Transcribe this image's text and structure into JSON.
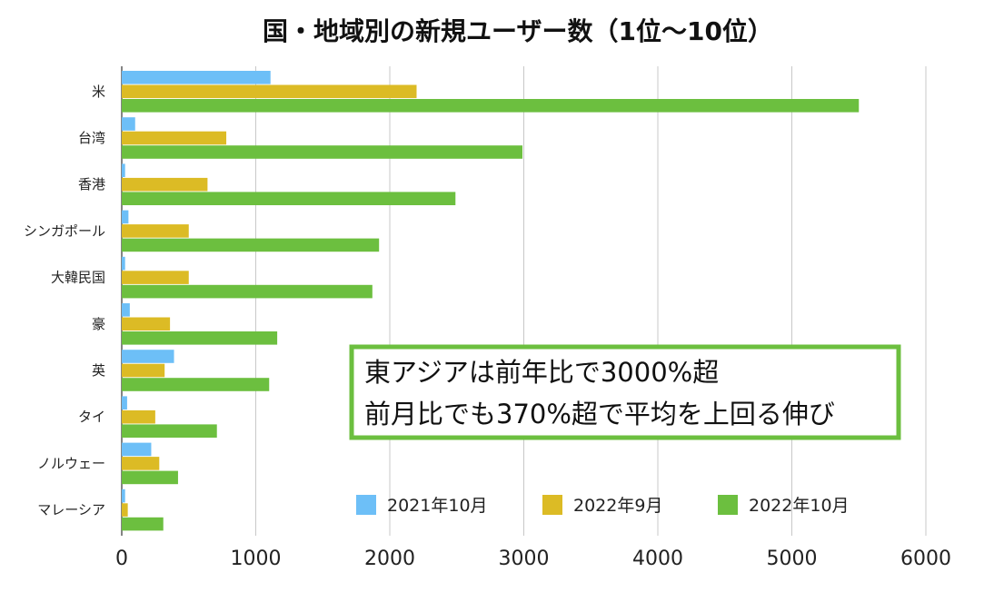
{
  "chart_data": {
    "type": "bar",
    "orientation": "horizontal",
    "title": "国・地域別の新規ユーザー数（1位〜10位）",
    "categories": [
      "米",
      "台湾",
      "香港",
      "シンガポール",
      "大韓民国",
      "豪",
      "英",
      "タイ",
      "ノルウェー",
      "マレーシア"
    ],
    "series": [
      {
        "name": "2021年10月",
        "color": "#6dbff7",
        "values": [
          1110,
          100,
          25,
          50,
          25,
          60,
          390,
          40,
          220,
          25
        ]
      },
      {
        "name": "2022年9月",
        "color": "#dcbb25",
        "values": [
          2200,
          780,
          640,
          500,
          500,
          360,
          320,
          250,
          280,
          45
        ]
      },
      {
        "name": "2022年10月",
        "color": "#6cbf3f",
        "values": [
          5500,
          2990,
          2490,
          1920,
          1870,
          1160,
          1100,
          710,
          420,
          310
        ]
      }
    ],
    "xlim": [
      0,
      6000
    ],
    "xticks": [
      "0",
      "1000",
      "2000",
      "3000",
      "4000",
      "5000",
      "6000"
    ],
    "xlabel": "",
    "ylabel": "",
    "grid": true,
    "legend": "bottom-right"
  },
  "annotation": {
    "line1": "東アジアは前年比で3000%超",
    "line2": "前月比でも370%超で平均を上回る伸び",
    "border_color": "#6cbf3f"
  }
}
